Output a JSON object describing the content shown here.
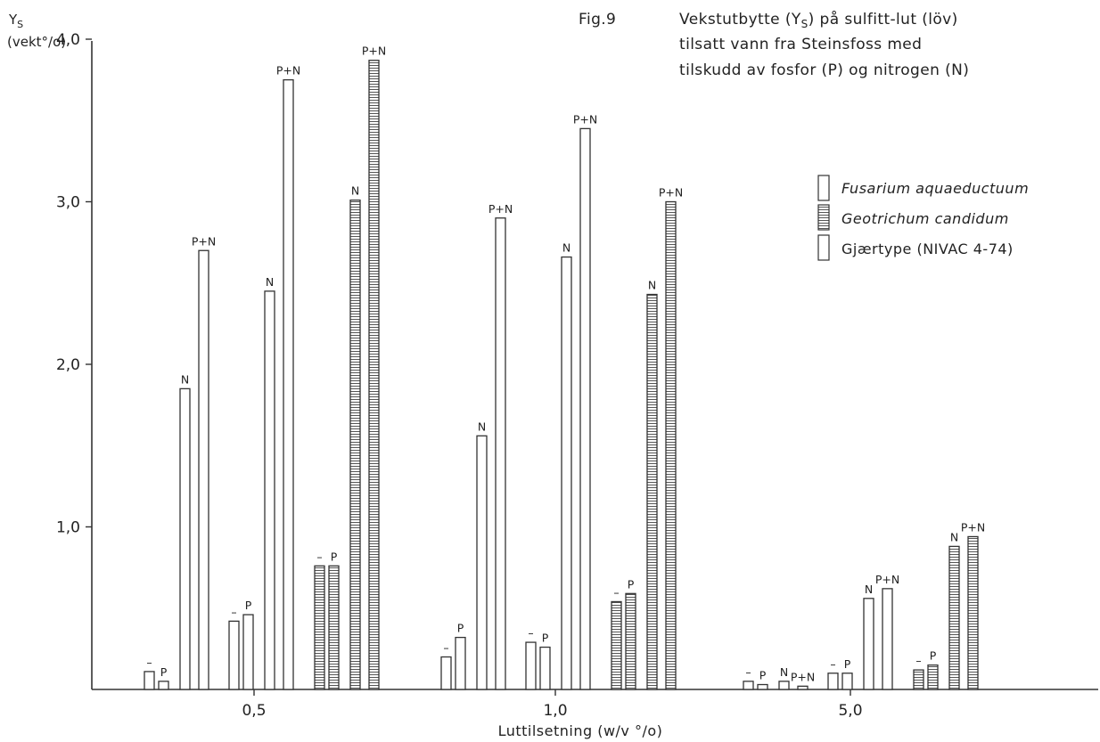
{
  "chart_data": {
    "type": "bar",
    "title_lines": [
      "Fig.9",
      "Vekstutbytte (Y",
      "S",
      ") på sulfitt-lut (löv)",
      "tilsatt vann fra Steinsfoss med",
      "tilskudd av fosfor (P) og nitrogen (N)"
    ],
    "ylabel_main": "Y",
    "ylabel_sub": "S",
    "ylabel_unit": "(vekt°/o)",
    "xlabel": "Luttilsetning (w/v °/o)",
    "ylim": [
      0,
      4.0
    ],
    "yticks": [
      {
        "value": 1.0,
        "label": "1,0"
      },
      {
        "value": 2.0,
        "label": "2,0"
      },
      {
        "value": 3.0,
        "label": "3,0"
      },
      {
        "value": 4.0,
        "label": "4,0"
      }
    ],
    "group_tick_labels": [
      "0,5",
      "1,0",
      "5,0"
    ],
    "treatments": [
      "–",
      "P",
      "N",
      "P+N"
    ],
    "legend": [
      {
        "name": "Fusarium aquaeductuum",
        "italic": true,
        "pattern": "plain"
      },
      {
        "name": "Geotrichum candidum",
        "italic": true,
        "pattern": "hatched"
      },
      {
        "name": "Gjærtype (NIVAC 4-74)",
        "italic": false,
        "pattern": "plain"
      }
    ],
    "groups": [
      {
        "lut": "0,5",
        "series": [
          {
            "organism": "Fusarium aquaeductuum",
            "values": [
              0.11,
              0.05,
              1.85,
              2.7
            ]
          },
          {
            "organism": "Gjærtype (NIVAC 4-74)",
            "values": [
              0.42,
              0.46,
              2.45,
              3.75
            ]
          },
          {
            "organism": "Geotrichum candidum",
            "values": [
              0.76,
              0.76,
              3.01,
              3.87
            ]
          }
        ]
      },
      {
        "lut": "1,0",
        "series": [
          {
            "organism": "Fusarium aquaeductuum",
            "values": [
              0.2,
              0.32,
              1.56,
              2.9
            ]
          },
          {
            "organism": "Gjærtype (NIVAC 4-74)",
            "values": [
              0.29,
              0.26,
              2.66,
              3.45
            ]
          },
          {
            "organism": "Geotrichum candidum",
            "values": [
              0.54,
              0.59,
              2.43,
              3.0
            ]
          }
        ]
      },
      {
        "lut": "5,0",
        "series": [
          {
            "organism": "Fusarium aquaeductuum",
            "values": [
              0.05,
              0.03,
              0.05,
              0.02
            ]
          },
          {
            "organism": "Gjærtype (NIVAC 4-74)",
            "values": [
              0.1,
              0.1,
              0.56,
              0.62
            ]
          },
          {
            "organism": "Geotrichum candidum",
            "values": [
              0.12,
              0.15,
              0.88,
              0.94
            ]
          }
        ]
      }
    ],
    "grid": false,
    "legend_position": "right"
  }
}
